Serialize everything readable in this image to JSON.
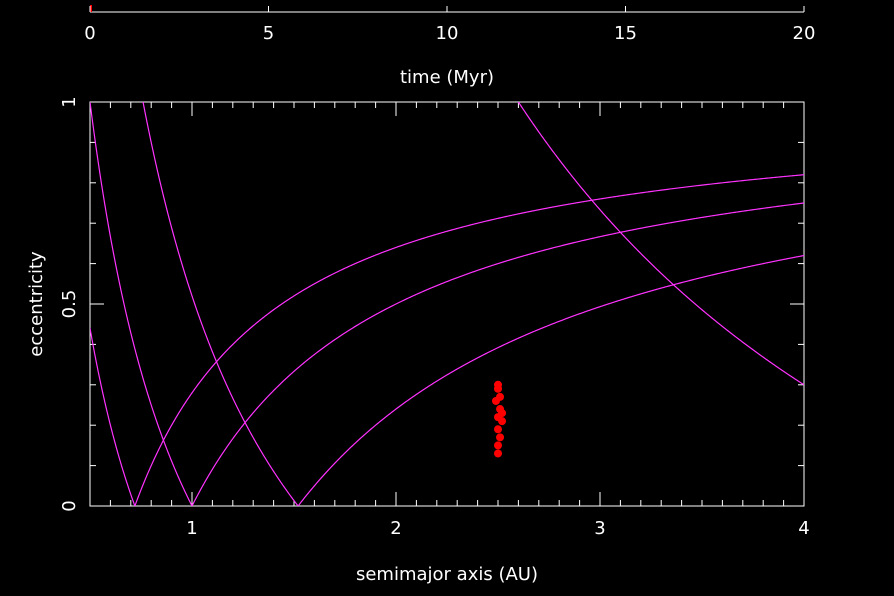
{
  "chart_data": [
    {
      "type": "progress",
      "xlabel": "time (Myr)",
      "xlim": [
        0,
        20
      ],
      "xticks": [
        0,
        5,
        10,
        15,
        20
      ],
      "progress_value": 0
    },
    {
      "type": "scatter",
      "xlabel": "semimajor axis (AU)",
      "ylabel": "eccentricity",
      "xlim": [
        0.5,
        4
      ],
      "ylim": [
        0,
        1
      ],
      "xticks": [
        1,
        2,
        3,
        4
      ],
      "yticks": [
        0,
        0.5,
        1
      ],
      "yticklabels": [
        "0",
        "0.5",
        "1"
      ],
      "curve_color": "#ff33ff",
      "point_color": "#ff0000",
      "curves": [
        {
          "kind": "perihelion",
          "q": 0.72
        },
        {
          "kind": "perihelion",
          "q": 1.0
        },
        {
          "kind": "perihelion",
          "q": 1.52
        },
        {
          "kind": "aphelion",
          "Q": 0.72
        },
        {
          "kind": "aphelion",
          "Q": 1.0
        },
        {
          "kind": "aphelion",
          "Q": 1.52
        },
        {
          "kind": "aphelion",
          "Q": 5.2
        }
      ],
      "points": [
        {
          "x": 2.5,
          "y": 0.13
        },
        {
          "x": 2.5,
          "y": 0.15
        },
        {
          "x": 2.51,
          "y": 0.17
        },
        {
          "x": 2.5,
          "y": 0.19
        },
        {
          "x": 2.52,
          "y": 0.21
        },
        {
          "x": 2.5,
          "y": 0.22
        },
        {
          "x": 2.51,
          "y": 0.24
        },
        {
          "x": 2.49,
          "y": 0.26
        },
        {
          "x": 2.51,
          "y": 0.27
        },
        {
          "x": 2.5,
          "y": 0.29
        },
        {
          "x": 2.5,
          "y": 0.3
        },
        {
          "x": 2.52,
          "y": 0.23
        }
      ]
    }
  ]
}
